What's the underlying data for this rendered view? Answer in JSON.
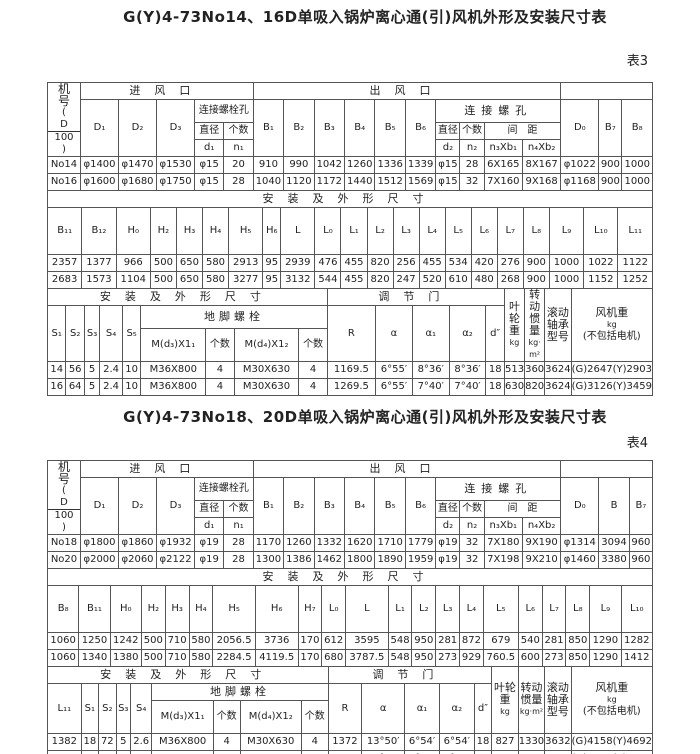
{
  "tables": [
    {
      "title": "G(Y)4-73No14、16D单吸入锅炉离心通(引)风机外形及安装尺寸表",
      "table_no": "表3",
      "machine_label": "机号",
      "frac_num": "D",
      "frac_den": "100",
      "inlet_label": "进风口",
      "outlet_label": "出风口",
      "bolt_hole_label": "连接螺栓孔",
      "screw_hole_label": "连接螺孔",
      "diameter_label": "直径",
      "count_label": "个数",
      "spacing_label": "间　距",
      "inlet_cols": [
        "D₁",
        "D₂",
        "D₃"
      ],
      "inlet_sym": [
        "d₁",
        "n₁"
      ],
      "outlet_cols": [
        "B₁",
        "B₂",
        "B₃",
        "B₄",
        "B₅",
        "B₆"
      ],
      "outlet_sym": [
        "d₂",
        "n₂",
        "n₃Xb₁",
        "n₄Xb₂"
      ],
      "right_cols": [
        "D₀",
        "B₇",
        "B₈"
      ],
      "a_rows": [
        [
          "No14",
          "φ1400",
          "φ1470",
          "φ1530",
          "φ15",
          "20",
          "910",
          "990",
          "1042",
          "1260",
          "1336",
          "1339",
          "φ15",
          "28",
          "6X165",
          "8X167",
          "φ1022",
          "900",
          "1000"
        ],
        [
          "No16",
          "φ1600",
          "φ1680",
          "φ1750",
          "φ15",
          "28",
          "1040",
          "1120",
          "1172",
          "1440",
          "1512",
          "1569",
          "φ15",
          "32",
          "7X160",
          "9X168",
          "φ1168",
          "900",
          "1000"
        ]
      ],
      "b_title": "安装及外形尺寸",
      "b_head": [
        "B₁₁",
        "B₁₂",
        "H₀",
        "H₂",
        "H₃",
        "H₄",
        "H₅",
        "H₆",
        "L",
        "L₀",
        "L₁",
        "L₂",
        "L₃",
        "L₄",
        "L₅",
        "L₆",
        "L₇",
        "L₈",
        "L₉",
        "L₁₀",
        "L₁₁"
      ],
      "b_rows": [
        [
          "2357",
          "1377",
          "966",
          "500",
          "650",
          "580",
          "2913",
          "95",
          "2939",
          "476",
          "455",
          "820",
          "256",
          "455",
          "534",
          "420",
          "276",
          "900",
          "1000",
          "1022",
          "1122"
        ],
        [
          "2683",
          "1573",
          "1104",
          "500",
          "650",
          "580",
          "3277",
          "95",
          "3132",
          "544",
          "455",
          "820",
          "247",
          "520",
          "610",
          "480",
          "268",
          "900",
          "1000",
          "1152",
          "1252"
        ]
      ],
      "c_title": "安装及外形尺寸",
      "damper_label": "调节门",
      "foundation_label": "地脚螺栓",
      "c_left": [
        "S₁",
        "S₂",
        "S₃",
        "S₄",
        "S₅"
      ],
      "c_bolt": [
        "M(d₃)X1₁",
        "个数",
        "M(d₄)X1₂",
        "个数"
      ],
      "c_damper": [
        "R",
        "α",
        "α₁",
        "α₂",
        "d″"
      ],
      "c_right": [
        {
          "main": "叶轮重",
          "unit": "kg"
        },
        {
          "main": "转动惯量",
          "unit": "kg·m²"
        },
        {
          "main": "滚动轴承型号",
          "unit": ""
        },
        {
          "main": "风机重",
          "unit": "kg",
          "note": "(不包括电机)"
        }
      ],
      "c_rows": [
        [
          "14",
          "56",
          "5",
          "2.4",
          "10",
          "M36X800",
          "4",
          "M30X630",
          "4",
          "1169.5",
          "6°55′",
          "8°36′",
          "8°36′",
          "18",
          "513",
          "360",
          "3624",
          "(G)2647(Y)2903"
        ],
        [
          "16",
          "64",
          "5",
          "2.4",
          "10",
          "M36X800",
          "4",
          "M30X630",
          "4",
          "1269.5",
          "6°55′",
          "7°40′",
          "7°40′",
          "18",
          "630",
          "820",
          "3624",
          "(G)3126(Y)3459"
        ]
      ]
    },
    {
      "title": "G(Y)4-73No18、20D单吸入锅炉离心通(引)风机外形及安装尺寸表",
      "table_no": "表4",
      "machine_label": "机号",
      "frac_num": "D",
      "frac_den": "100",
      "inlet_label": "进风口",
      "outlet_label": "出风口",
      "bolt_hole_label": "连接螺栓孔",
      "screw_hole_label": "连接螺孔",
      "diameter_label": "直径",
      "count_label": "个数",
      "spacing_label": "间　距",
      "inlet_cols": [
        "D₁",
        "D₂",
        "D₃"
      ],
      "inlet_sym": [
        "d₁",
        "n₁"
      ],
      "outlet_cols": [
        "B₁",
        "B₂",
        "B₃",
        "B₄",
        "B₅",
        "B₆"
      ],
      "outlet_sym": [
        "d₂",
        "n₂",
        "n₃Xb₁",
        "n₄Xb₂"
      ],
      "right_cols": [
        "D₀",
        "B",
        "B₇"
      ],
      "a_rows": [
        [
          "No18",
          "φ1800",
          "φ1860",
          "φ1932",
          "φ19",
          "28",
          "1170",
          "1260",
          "1332",
          "1620",
          "1710",
          "1779",
          "φ19",
          "32",
          "7X180",
          "9X190",
          "φ1314",
          "3094",
          "960"
        ],
        [
          "No20",
          "φ2000",
          "φ2060",
          "φ2122",
          "φ19",
          "28",
          "1300",
          "1386",
          "1462",
          "1800",
          "1890",
          "1959",
          "φ19",
          "32",
          "7X198",
          "9X210",
          "φ1460",
          "3380",
          "960"
        ]
      ],
      "b_title": "安装及外形尺寸",
      "b_head": [
        "B₈",
        "B₁₁",
        "H₀",
        "H₂",
        "H₃",
        "H₄",
        "H₅",
        "H₆",
        "H₇",
        "L₀",
        "L",
        "L₁",
        "L₂",
        "L₃",
        "L₄",
        "L₅",
        "L₆",
        "L₇",
        "L₈",
        "L₉",
        "L₁₀"
      ],
      "b_rows": [
        [
          "1060",
          "1250",
          "1242",
          "500",
          "710",
          "580",
          "2056.5",
          "3736",
          "170",
          "612",
          "3595",
          "548",
          "950",
          "281",
          "872",
          "679",
          "540",
          "281",
          "850",
          "1290",
          "1282"
        ],
        [
          "1060",
          "1340",
          "1380",
          "500",
          "710",
          "580",
          "2284.5",
          "4119.5",
          "170",
          "680",
          "3787.5",
          "548",
          "950",
          "273",
          "929",
          "760.5",
          "600",
          "273",
          "850",
          "1290",
          "1412"
        ]
      ],
      "c_title": "安装及外形尺寸",
      "damper_label": "调节门",
      "foundation_label": "地脚螺栓",
      "c_left": [
        "L₁₁",
        "S₁",
        "S₂",
        "S₃",
        "S₄"
      ],
      "c_bolt": [
        "M(d₃)X1₁",
        "个数",
        "M(d₄)X1₂",
        "个数"
      ],
      "c_damper": [
        "R",
        "α",
        "α₁",
        "α₂",
        "d″"
      ],
      "c_right": [
        {
          "main": "叶轮重",
          "unit": "kg"
        },
        {
          "main": "转动惯量",
          "unit": "kg·m²"
        },
        {
          "main": "滚动轴承型号",
          "unit": ""
        },
        {
          "main": "风机重",
          "unit": "kg",
          "note": "(不包括电机)"
        }
      ],
      "c_rows": [
        [
          "1382",
          "18",
          "72",
          "5",
          "2.6",
          "M36X800",
          "4",
          "M30X630",
          "4",
          "1372",
          "13°50′",
          "6°54′",
          "6°54′",
          "18",
          "827",
          "1330",
          "3632",
          "(G)4158(Y)4692"
        ],
        [
          "1512",
          "20",
          "80",
          "5",
          "2.6",
          "M36X800",
          "4",
          "M30X630",
          "4",
          "1472",
          "13°50′",
          "6°18′",
          "6°18′",
          "18",
          "1000",
          "2270",
          "3632",
          "(G)4331(Y)5047"
        ]
      ]
    }
  ]
}
